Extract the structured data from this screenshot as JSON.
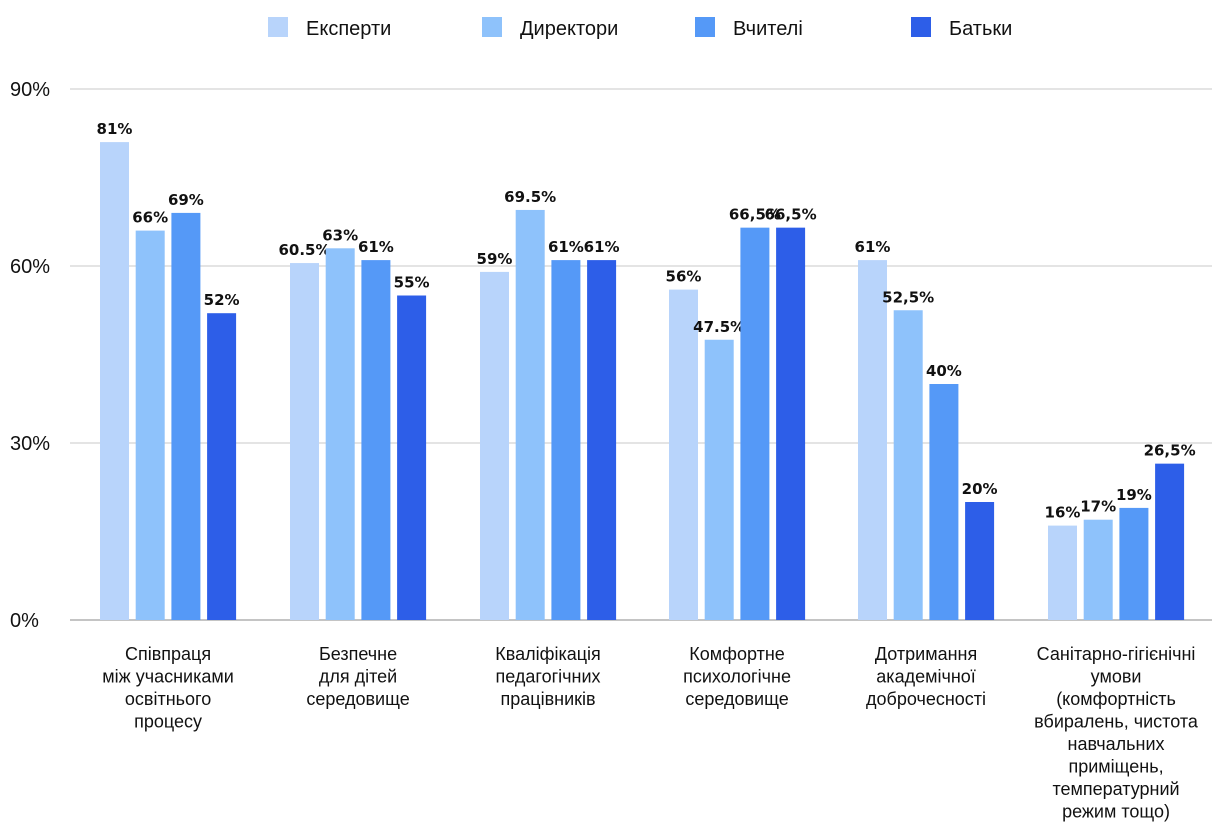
{
  "chart_data": {
    "type": "bar",
    "title": "",
    "xlabel": "",
    "ylabel": "",
    "ylim": [
      0,
      90
    ],
    "yticks": [
      0,
      30,
      60,
      90
    ],
    "ytick_labels": [
      "0%",
      "30%",
      "60%",
      "90%"
    ],
    "grid": true,
    "legend": "top",
    "categories": [
      [
        "Співпраця",
        "між учасниками",
        "освітнього",
        "процесу"
      ],
      [
        "Безпечне",
        "для дітей",
        "середовище"
      ],
      [
        "Кваліфікація",
        "педагогічних",
        "працівників"
      ],
      [
        "Комфортне",
        "психологічне",
        "середовище"
      ],
      [
        "Дотримання",
        "академічної",
        "доброчесності"
      ],
      [
        "Санітарно-гігієнічні",
        "умови",
        "(комфортність",
        "вбиралень, чистота",
        "навчальних",
        "приміщень,",
        "температурний",
        "режим тощо)"
      ]
    ],
    "series": [
      {
        "name": "Експерти",
        "color": "#b8d4fb",
        "values": [
          81,
          60.5,
          59,
          56,
          61,
          16
        ],
        "labels": [
          "81%",
          "60.5%",
          "59%",
          "56%",
          "61%",
          "16%"
        ]
      },
      {
        "name": "Директори",
        "color": "#8ec2fb",
        "values": [
          66,
          63,
          69.5,
          47.5,
          52.5,
          17
        ],
        "labels": [
          "66%",
          "63%",
          "69.5%",
          "47.5%",
          "52,5%",
          "17%"
        ]
      },
      {
        "name": "Вчителі",
        "color": "#5599f7",
        "values": [
          69,
          61,
          61,
          66.5,
          40,
          19
        ],
        "labels": [
          "69%",
          "61%",
          "61%",
          "66,5%",
          "40%",
          "19%"
        ]
      },
      {
        "name": "Батьки",
        "color": "#2d5ee8",
        "values": [
          52,
          55,
          61,
          66.5,
          20,
          26.5
        ],
        "labels": [
          "52%",
          "55%",
          "61%",
          "66,5%",
          "20%",
          "26,5%"
        ]
      }
    ]
  }
}
